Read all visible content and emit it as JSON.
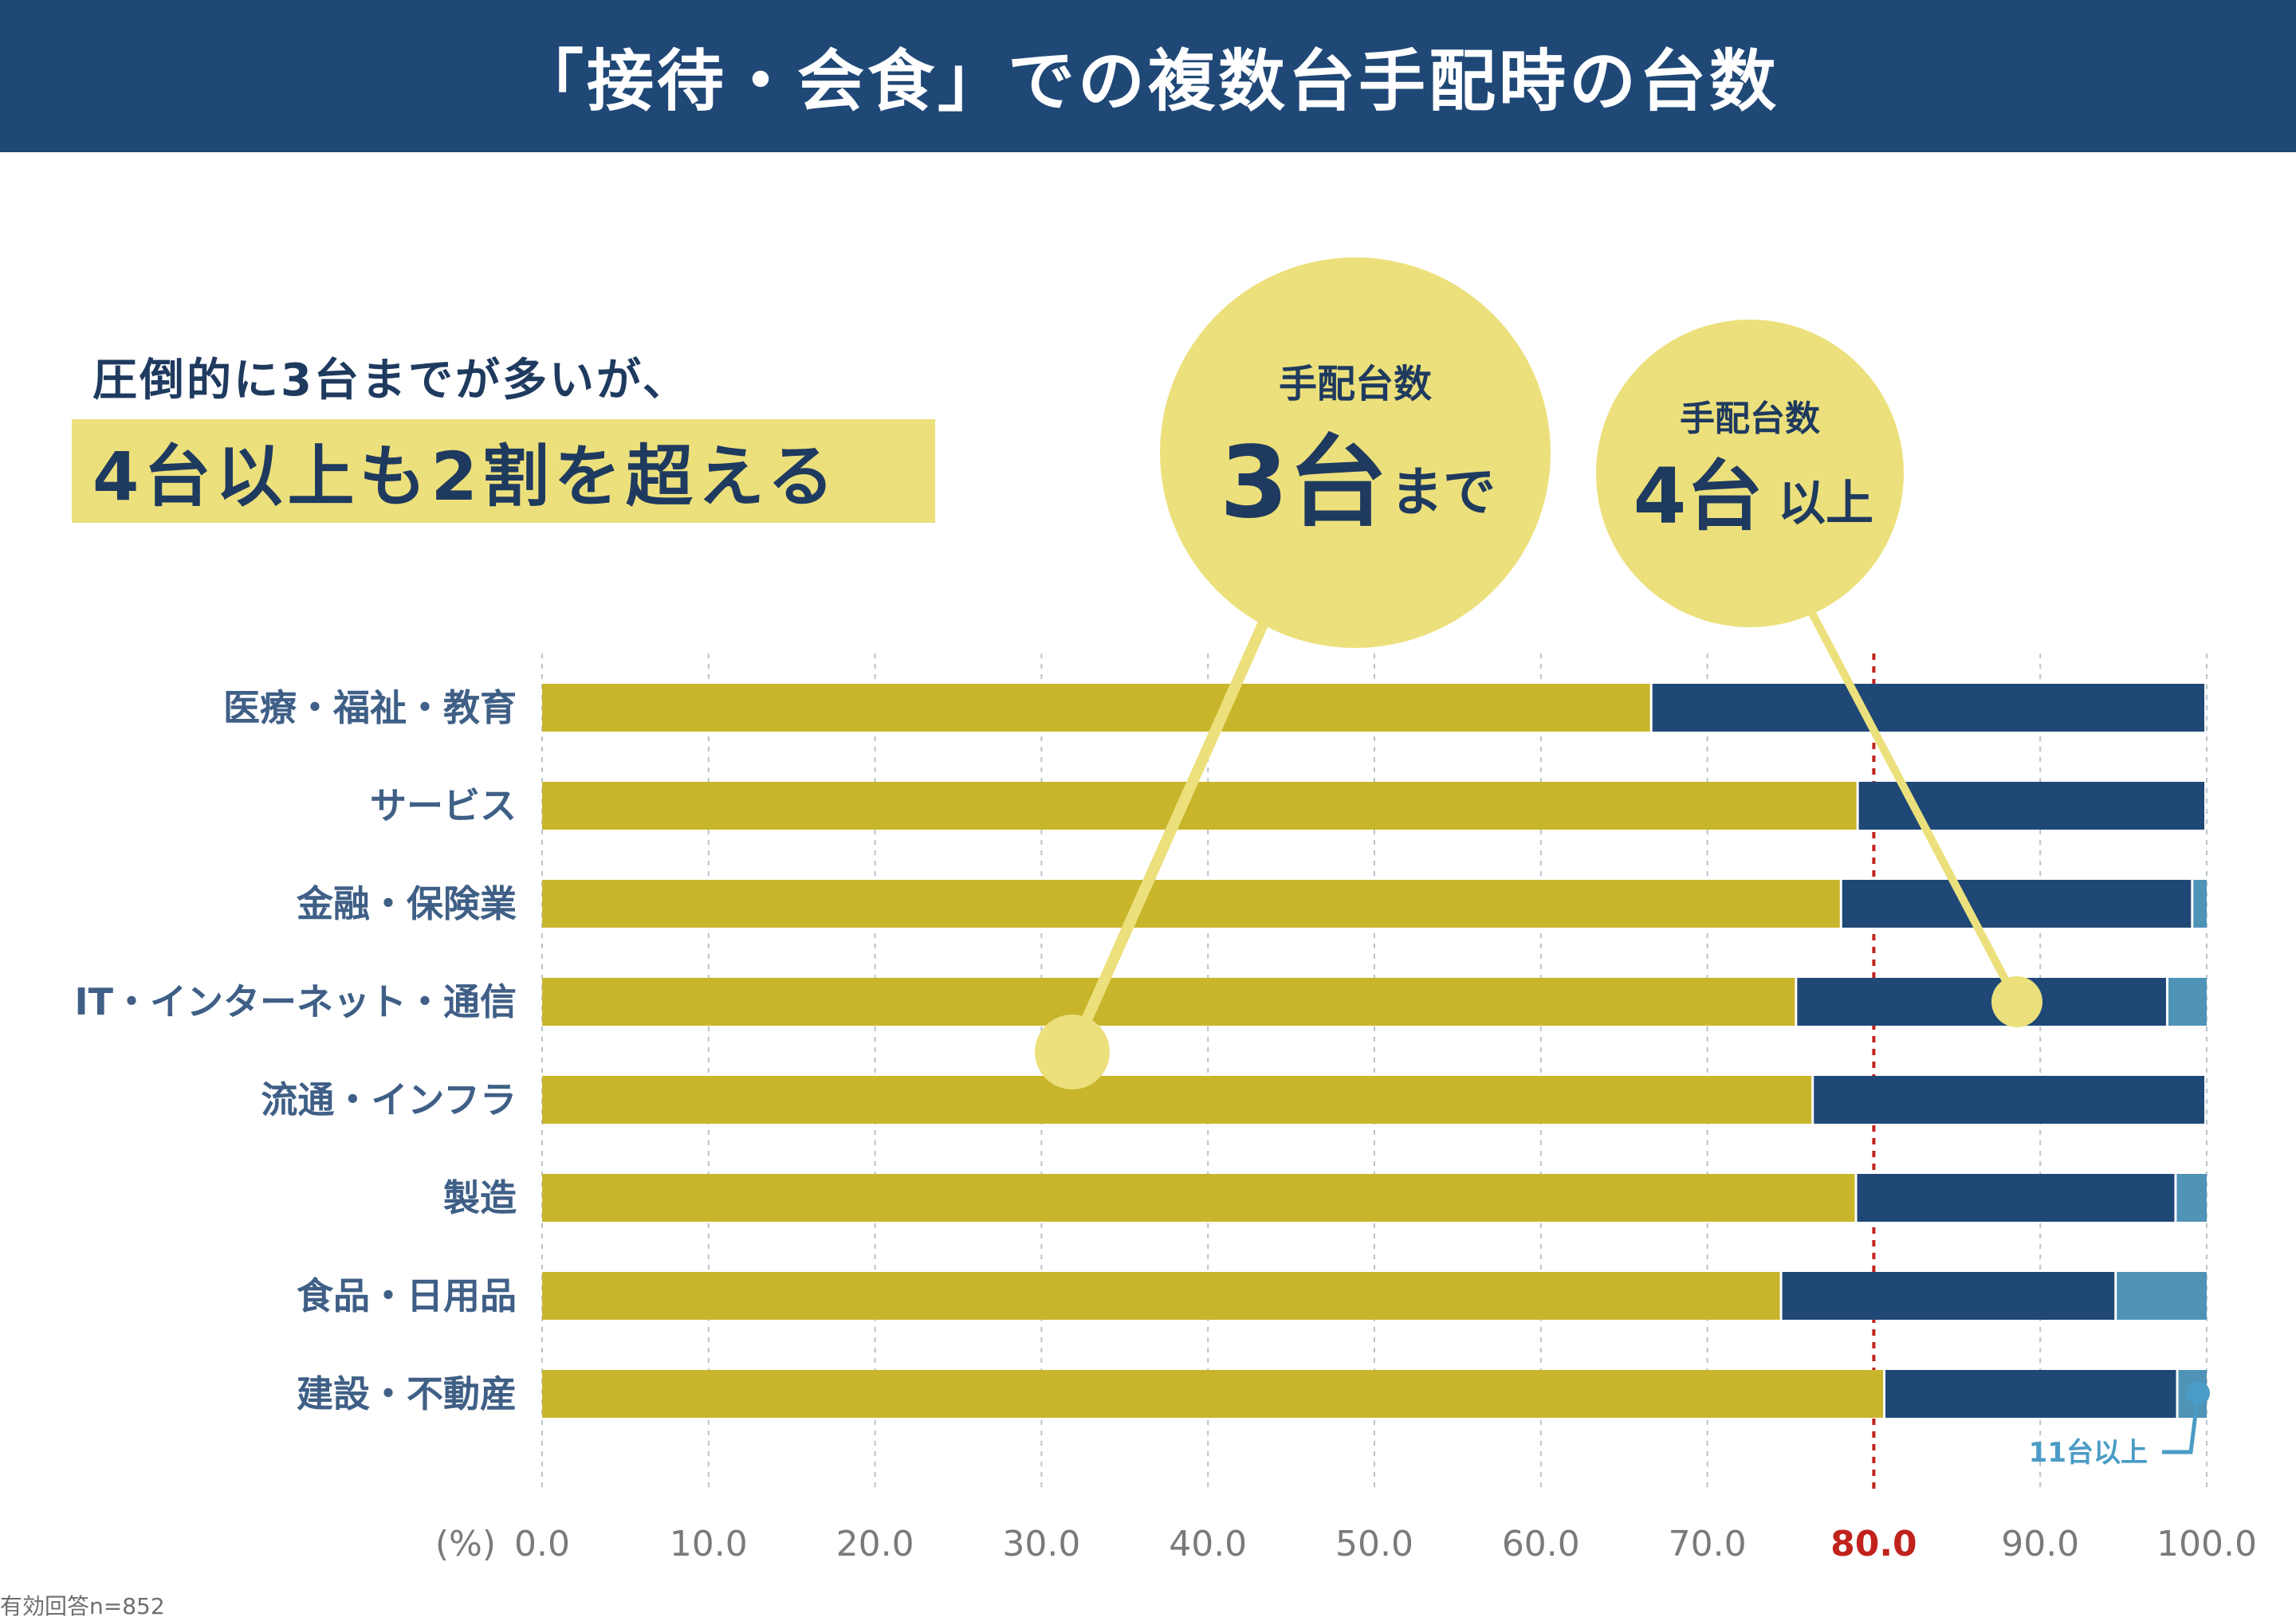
{
  "title": "「接待・会食」での複数台手配時の台数",
  "headline": {
    "line1": "圧倒的に3台までが多いが、",
    "line2": "4台以上も2割を超える"
  },
  "callouts": {
    "up_to_3": {
      "sub": "手配台数",
      "big": "3台",
      "small": "まで"
    },
    "four_plus": {
      "sub": "手配台数",
      "big": "4台",
      "small": "以上"
    },
    "eleven_plus": "11台以上"
  },
  "footnote": "有効回答n=852",
  "colors": {
    "title_bg": "#1f4877",
    "up_to_3": "#c9b52b",
    "four_to_ten": "#1f4877",
    "eleven_plus": "#4f93b7",
    "callout": "#ece07c",
    "highlight_line": "#c0221c"
  },
  "chart_data": {
    "type": "bar",
    "orientation": "horizontal",
    "stacked": true,
    "unit_label": "(%)",
    "xlim": [
      0,
      100
    ],
    "x_ticks": [
      "0.0",
      "10.0",
      "20.0",
      "30.0",
      "40.0",
      "50.0",
      "60.0",
      "70.0",
      "80.0",
      "90.0",
      "100.0"
    ],
    "highlight_x": 80,
    "categories": [
      "医療・福祉・教育",
      "サービス",
      "金融・保険業",
      "IT・インターネット・通信",
      "流通・インフラ",
      "製造",
      "食品・日用品",
      "建設・不動産"
    ],
    "series": [
      {
        "name": "3台まで",
        "values": [
          66.7,
          79.1,
          78.1,
          75.4,
          76.4,
          79.0,
          74.5,
          80.7
        ]
      },
      {
        "name": "4台以上",
        "values": [
          33.3,
          20.9,
          21.1,
          22.3,
          23.6,
          19.2,
          20.1,
          17.6
        ]
      },
      {
        "name": "11台以上",
        "values": [
          0.0,
          0.0,
          0.8,
          2.3,
          0.0,
          1.8,
          5.4,
          1.7
        ]
      }
    ]
  }
}
